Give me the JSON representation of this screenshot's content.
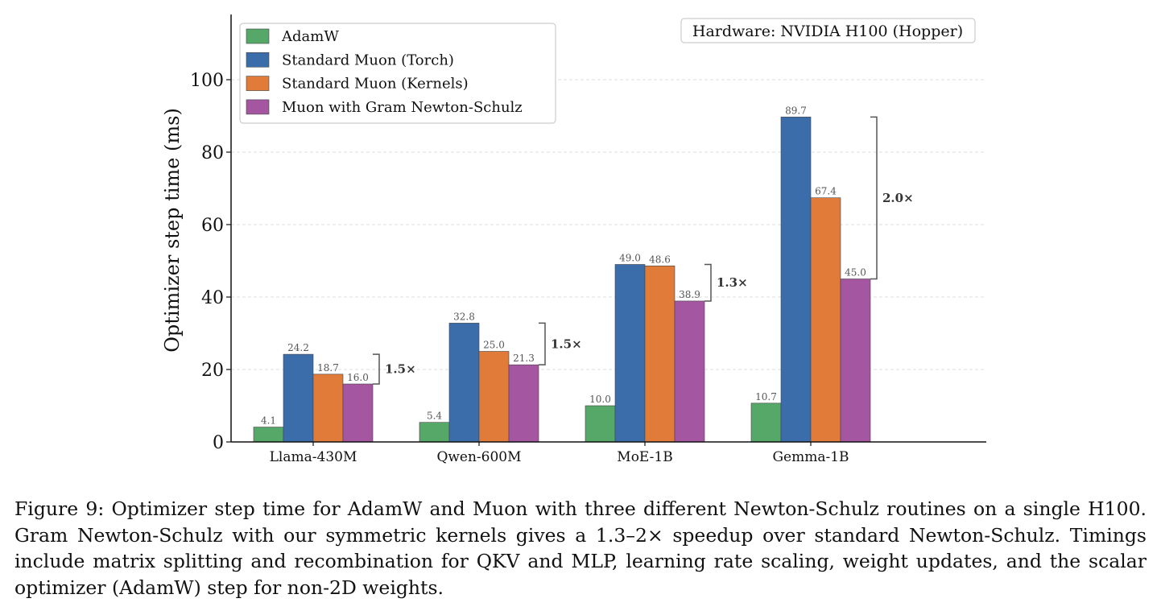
{
  "chart_data": {
    "type": "bar",
    "title": "",
    "xlabel": "",
    "ylabel": "Optimizer step time (ms)",
    "ylim": [
      0,
      118
    ],
    "yticks": [
      0,
      20,
      40,
      60,
      80,
      100
    ],
    "grid": "horizontal-dashed",
    "legend_position": "top-left",
    "annotation_box": "Hardware: NVIDIA H100 (Hopper)",
    "categories": [
      "Llama-430M",
      "Qwen-600M",
      "MoE-1B",
      "Gemma-1B"
    ],
    "series": [
      {
        "name": "AdamW",
        "color": "#55a868",
        "values": [
          4.1,
          5.4,
          10.0,
          10.7
        ]
      },
      {
        "name": "Standard Muon (Torch)",
        "color": "#3b6dab",
        "values": [
          24.2,
          32.8,
          49.0,
          89.7
        ]
      },
      {
        "name": "Standard Muon (Kernels)",
        "color": "#e07b39",
        "values": [
          18.7,
          25.0,
          48.6,
          67.4
        ]
      },
      {
        "name": "Muon with Gram Newton-Schulz",
        "color": "#a456a0",
        "values": [
          16.0,
          21.3,
          38.9,
          45.0
        ]
      }
    ],
    "value_labels": [
      [
        "4.1",
        "24.2",
        "18.7",
        "16.0"
      ],
      [
        "5.4",
        "32.8",
        "25.0",
        "21.3"
      ],
      [
        "10.0",
        "49.0",
        "48.6",
        "38.9"
      ],
      [
        "10.7",
        "89.7",
        "67.4",
        "45.0"
      ]
    ],
    "speedups": [
      {
        "category": "Llama-430M",
        "from": 24.2,
        "to": 16.0,
        "label": "1.5×"
      },
      {
        "category": "Qwen-600M",
        "from": 32.8,
        "to": 21.3,
        "label": "1.5×"
      },
      {
        "category": "MoE-1B",
        "from": 49.0,
        "to": 38.9,
        "label": "1.3×"
      },
      {
        "category": "Gemma-1B",
        "from": 89.7,
        "to": 45.0,
        "label": "2.0×"
      }
    ]
  },
  "caption": "Figure 9: Optimizer step time for AdamW and Muon with three different Newton-Schulz routines on a single H100. Gram Newton-Schulz with our symmetric kernels gives a 1.3–2× speedup over standard Newton-Schulz. Timings include matrix splitting and recombination for QKV and MLP, learning rate scaling, weight updates, and the scalar optimizer (AdamW) step for non-2D weights."
}
